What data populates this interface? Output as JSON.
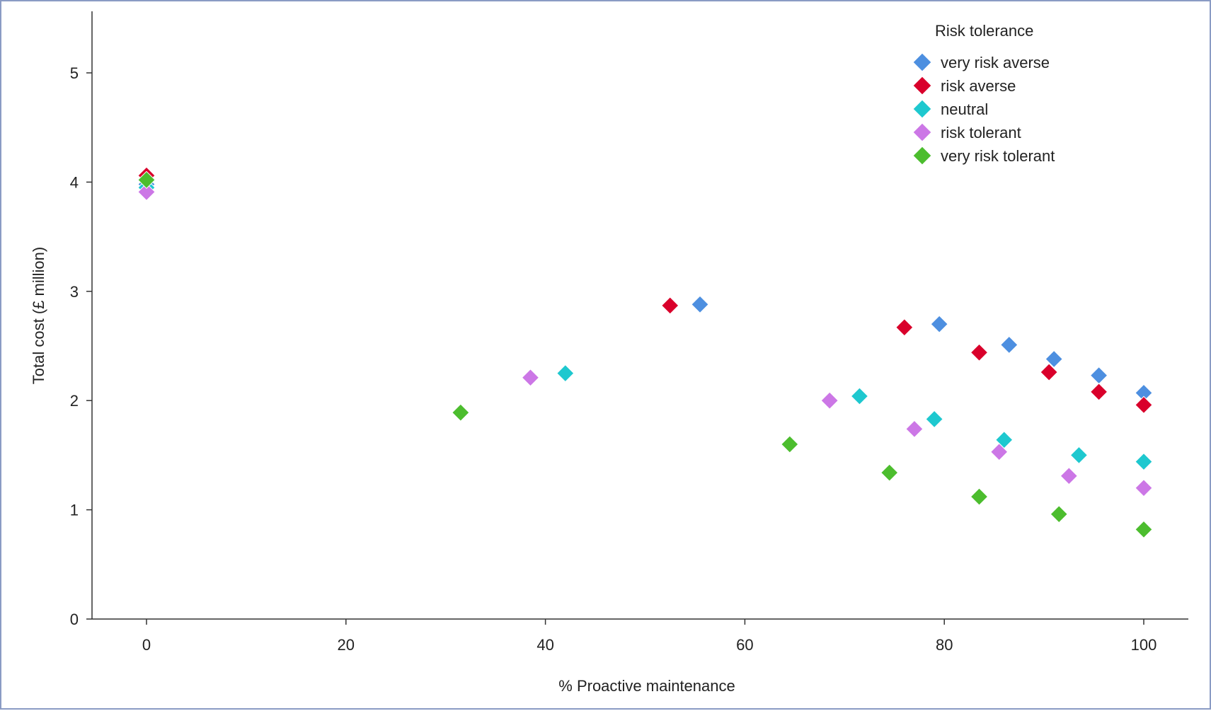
{
  "chart_data": {
    "type": "scatter",
    "title": "",
    "xlabel": "% Proactive maintenance",
    "ylabel": "Total cost (£ million)",
    "xlim": [
      -5.5,
      105.5
    ],
    "ylim": [
      0,
      5.5
    ],
    "xticks": [
      0,
      20,
      40,
      60,
      80,
      100
    ],
    "yticks": [
      0,
      1,
      2,
      3,
      4,
      5
    ],
    "grid": false,
    "legend": {
      "title": "Risk tolerance",
      "placement": "top-right"
    },
    "series": [
      {
        "name": "very risk averse",
        "color": "#4d8fe0",
        "points": [
          [
            0,
            3.98
          ],
          [
            55.5,
            2.88
          ],
          [
            79.5,
            2.7
          ],
          [
            86.5,
            2.51
          ],
          [
            91,
            2.38
          ],
          [
            95.5,
            2.23
          ],
          [
            100,
            2.07
          ]
        ]
      },
      {
        "name": "risk averse",
        "color": "#d9002b",
        "points": [
          [
            0,
            4.06
          ],
          [
            52.5,
            2.87
          ],
          [
            76,
            2.67
          ],
          [
            83.5,
            2.44
          ],
          [
            90.5,
            2.26
          ],
          [
            95.5,
            2.08
          ],
          [
            100,
            1.96
          ]
        ]
      },
      {
        "name": "neutral",
        "color": "#1ec8cf",
        "points": [
          [
            0,
            3.95
          ],
          [
            42,
            2.25
          ],
          [
            71.5,
            2.04
          ],
          [
            79,
            1.83
          ],
          [
            86,
            1.64
          ],
          [
            93.5,
            1.5
          ],
          [
            100,
            1.44
          ]
        ]
      },
      {
        "name": "risk tolerant",
        "color": "#cc77e6",
        "points": [
          [
            0,
            3.91
          ],
          [
            38.5,
            2.21
          ],
          [
            68.5,
            2.0
          ],
          [
            77,
            1.74
          ],
          [
            85.5,
            1.53
          ],
          [
            92.5,
            1.31
          ],
          [
            100,
            1.2
          ]
        ]
      },
      {
        "name": "very risk tolerant",
        "color": "#4cbd2e",
        "points": [
          [
            0,
            4.02
          ],
          [
            31.5,
            1.89
          ],
          [
            64.5,
            1.6
          ],
          [
            74.5,
            1.34
          ],
          [
            83.5,
            1.12
          ],
          [
            91.5,
            0.96
          ],
          [
            100,
            0.82
          ]
        ]
      }
    ]
  }
}
